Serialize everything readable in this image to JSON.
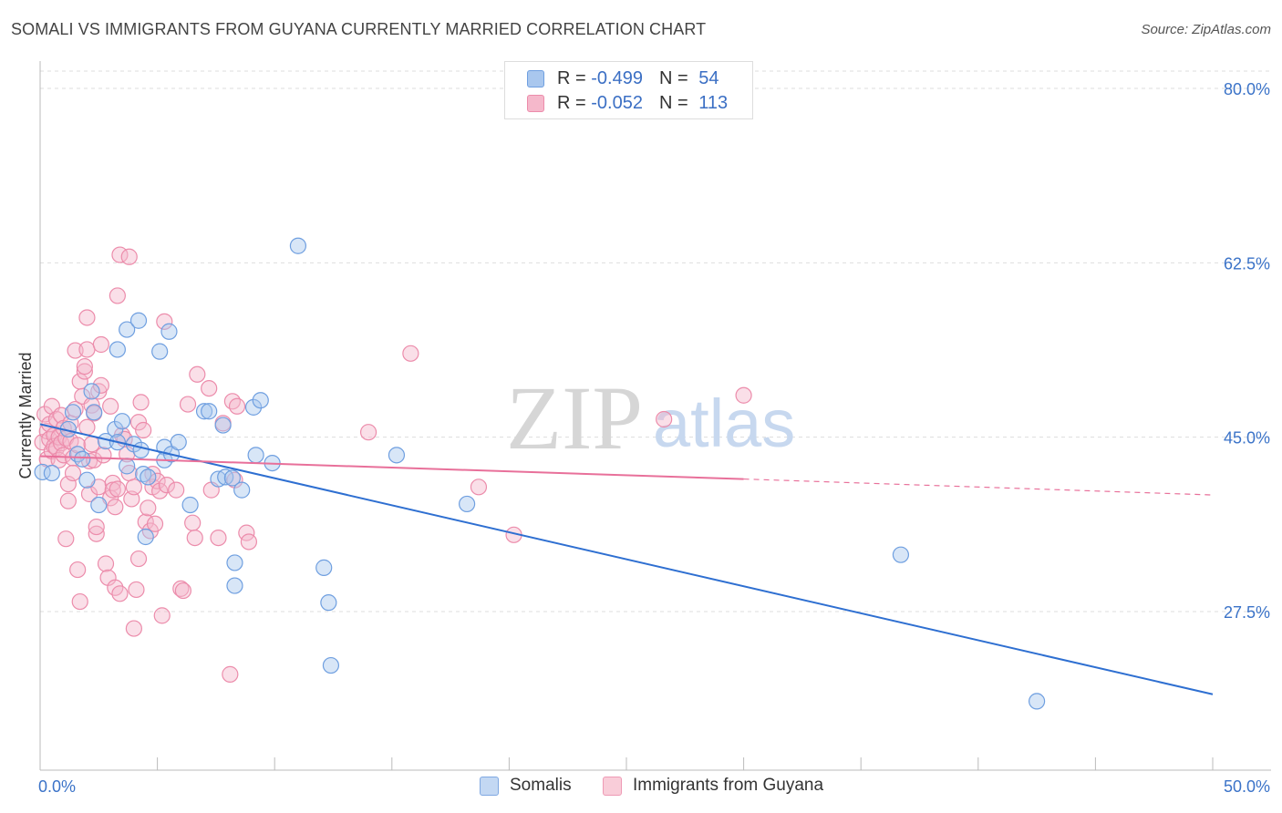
{
  "header": {
    "title": "SOMALI VS IMMIGRANTS FROM GUYANA CURRENTLY MARRIED CORRELATION CHART",
    "source": "Source: ZipAtlas.com"
  },
  "watermark": {
    "part1": "ZIP",
    "part2": "atlas"
  },
  "legend_top": {
    "rows": [
      {
        "r_label": "R = ",
        "r_value": "-0.499",
        "n_label": "N = ",
        "n_value": "54"
      },
      {
        "r_label": "R = ",
        "r_value": "-0.052",
        "n_label": "N = ",
        "n_value": "113"
      }
    ]
  },
  "legend_bottom": {
    "items": [
      "Somalis",
      "Immigrants from Guyana"
    ]
  },
  "colors": {
    "blue_fill": "#a9c7ee",
    "blue_stroke": "#6f9fe0",
    "blue_line": "#2e6fd1",
    "pink_fill": "#f5b8cb",
    "pink_stroke": "#ec8cab",
    "pink_line": "#e8709a",
    "tick_label": "#3b73c8",
    "grid": "#dddddd"
  },
  "chart_data": {
    "type": "scatter",
    "title": "SOMALI VS IMMIGRANTS FROM GUYANA CURRENTLY MARRIED CORRELATION CHART",
    "xlabel": "",
    "ylabel": "Currently Married",
    "xlim": [
      0,
      50
    ],
    "ylim": [
      12,
      83
    ],
    "x_tick_labels": [
      {
        "value": 0,
        "label": "0.0%"
      },
      {
        "value": 50,
        "label": "50.0%"
      }
    ],
    "y_ticks": [
      {
        "value": 80,
        "label": "80.0%"
      },
      {
        "value": 62.5,
        "label": "62.5%"
      },
      {
        "value": 45,
        "label": "45.0%"
      },
      {
        "value": 27.5,
        "label": "27.5%"
      }
    ],
    "grid": true,
    "legend_position": "top-center",
    "series": [
      {
        "name": "Somalis",
        "r": -0.499,
        "n": 54,
        "trend": {
          "x": [
            0,
            50
          ],
          "y": [
            46.3,
            19.2
          ],
          "style": "solid"
        },
        "points": [
          [
            0.1,
            41.5
          ],
          [
            0.5,
            41.4
          ],
          [
            1.2,
            45.8
          ],
          [
            1.4,
            47.5
          ],
          [
            1.6,
            43.3
          ],
          [
            1.8,
            42.8
          ],
          [
            2.0,
            40.7
          ],
          [
            2.2,
            49.6
          ],
          [
            2.3,
            47.5
          ],
          [
            2.5,
            38.2
          ],
          [
            2.8,
            44.6
          ],
          [
            3.2,
            45.8
          ],
          [
            3.3,
            44.5
          ],
          [
            3.5,
            46.6
          ],
          [
            3.3,
            53.8
          ],
          [
            3.7,
            42.1
          ],
          [
            3.7,
            55.8
          ],
          [
            4.0,
            44.3
          ],
          [
            4.2,
            56.7
          ],
          [
            4.3,
            43.7
          ],
          [
            4.4,
            41.3
          ],
          [
            4.5,
            35.0
          ],
          [
            4.6,
            41.0
          ],
          [
            5.1,
            53.6
          ],
          [
            5.3,
            44.0
          ],
          [
            5.3,
            42.7
          ],
          [
            5.5,
            55.6
          ],
          [
            5.6,
            43.3
          ],
          [
            5.9,
            44.5
          ],
          [
            6.4,
            38.2
          ],
          [
            7.0,
            47.6
          ],
          [
            7.2,
            47.6
          ],
          [
            7.6,
            40.8
          ],
          [
            7.8,
            46.2
          ],
          [
            7.9,
            41.0
          ],
          [
            8.2,
            40.9
          ],
          [
            8.3,
            30.1
          ],
          [
            8.3,
            32.4
          ],
          [
            8.6,
            39.7
          ],
          [
            9.1,
            48.0
          ],
          [
            9.2,
            43.2
          ],
          [
            9.4,
            48.7
          ],
          [
            9.9,
            42.4
          ],
          [
            11.0,
            64.2
          ],
          [
            12.1,
            31.9
          ],
          [
            12.3,
            28.4
          ],
          [
            12.4,
            22.1
          ],
          [
            15.2,
            43.2
          ],
          [
            18.2,
            38.3
          ],
          [
            36.7,
            33.2
          ],
          [
            42.5,
            18.5
          ]
        ]
      },
      {
        "name": "Immigrants from Guyana",
        "r": -0.052,
        "n": 113,
        "trend": {
          "x": [
            0,
            30
          ],
          "y": [
            43.1,
            40.8
          ],
          "style": "solid",
          "dashed_extension_to": [
            50,
            39.2
          ]
        },
        "points": [
          [
            0.1,
            44.5
          ],
          [
            0.2,
            47.3
          ],
          [
            0.3,
            45.6
          ],
          [
            0.3,
            42.8
          ],
          [
            0.4,
            46.3
          ],
          [
            0.4,
            44.8
          ],
          [
            0.5,
            48.1
          ],
          [
            0.5,
            43.6
          ],
          [
            0.6,
            45.2
          ],
          [
            0.6,
            44.1
          ],
          [
            0.7,
            46.8
          ],
          [
            0.7,
            43.9
          ],
          [
            0.8,
            45.0
          ],
          [
            0.8,
            42.7
          ],
          [
            0.9,
            47.2
          ],
          [
            0.9,
            44.4
          ],
          [
            1.0,
            45.9
          ],
          [
            1.0,
            43.2
          ],
          [
            1.1,
            44.9
          ],
          [
            1.1,
            34.8
          ],
          [
            1.2,
            40.3
          ],
          [
            1.2,
            38.6
          ],
          [
            1.3,
            46.4
          ],
          [
            1.3,
            44.6
          ],
          [
            1.4,
            42.9
          ],
          [
            1.4,
            41.4
          ],
          [
            1.5,
            53.7
          ],
          [
            1.5,
            47.8
          ],
          [
            1.6,
            44.2
          ],
          [
            1.6,
            31.7
          ],
          [
            1.7,
            28.5
          ],
          [
            1.7,
            50.6
          ],
          [
            1.8,
            49.1
          ],
          [
            1.9,
            51.6
          ],
          [
            1.9,
            52.1
          ],
          [
            2.0,
            53.8
          ],
          [
            2.0,
            57.0
          ],
          [
            2.0,
            46.0
          ],
          [
            2.1,
            42.6
          ],
          [
            2.1,
            39.3
          ],
          [
            2.2,
            44.3
          ],
          [
            2.2,
            48.2
          ],
          [
            2.3,
            47.4
          ],
          [
            2.3,
            42.7
          ],
          [
            2.4,
            35.3
          ],
          [
            2.4,
            36.0
          ],
          [
            2.5,
            49.6
          ],
          [
            2.5,
            40.0
          ],
          [
            2.6,
            54.3
          ],
          [
            2.6,
            50.2
          ],
          [
            2.7,
            43.2
          ],
          [
            2.8,
            32.3
          ],
          [
            2.9,
            30.9
          ],
          [
            3.0,
            48.1
          ],
          [
            3.0,
            38.9
          ],
          [
            3.1,
            40.4
          ],
          [
            3.1,
            39.7
          ],
          [
            3.2,
            38.0
          ],
          [
            3.2,
            29.9
          ],
          [
            3.3,
            59.2
          ],
          [
            3.3,
            39.8
          ],
          [
            3.4,
            63.3
          ],
          [
            3.4,
            29.3
          ],
          [
            3.5,
            45.2
          ],
          [
            3.6,
            44.8
          ],
          [
            3.7,
            43.3
          ],
          [
            3.8,
            63.1
          ],
          [
            3.8,
            41.4
          ],
          [
            3.9,
            38.8
          ],
          [
            4.0,
            25.8
          ],
          [
            4.0,
            40.0
          ],
          [
            4.1,
            29.7
          ],
          [
            4.2,
            32.8
          ],
          [
            4.2,
            46.5
          ],
          [
            4.3,
            48.5
          ],
          [
            4.4,
            45.7
          ],
          [
            4.5,
            36.5
          ],
          [
            4.6,
            37.9
          ],
          [
            4.7,
            35.6
          ],
          [
            4.8,
            41.3
          ],
          [
            4.8,
            40.0
          ],
          [
            4.9,
            36.3
          ],
          [
            5.0,
            40.6
          ],
          [
            5.1,
            39.6
          ],
          [
            5.2,
            27.1
          ],
          [
            5.3,
            56.6
          ],
          [
            5.4,
            40.2
          ],
          [
            5.8,
            39.7
          ],
          [
            6.0,
            29.8
          ],
          [
            6.1,
            29.6
          ],
          [
            6.3,
            48.3
          ],
          [
            6.5,
            36.4
          ],
          [
            6.6,
            34.9
          ],
          [
            6.7,
            51.3
          ],
          [
            7.2,
            49.9
          ],
          [
            7.3,
            39.7
          ],
          [
            7.6,
            34.9
          ],
          [
            7.8,
            46.4
          ],
          [
            8.1,
            21.2
          ],
          [
            8.2,
            48.6
          ],
          [
            8.3,
            40.7
          ],
          [
            8.4,
            48.1
          ],
          [
            8.8,
            35.4
          ],
          [
            8.9,
            34.5
          ],
          [
            14.0,
            45.5
          ],
          [
            15.8,
            53.4
          ],
          [
            18.7,
            40.0
          ],
          [
            20.2,
            35.2
          ],
          [
            26.6,
            46.8
          ],
          [
            30.0,
            49.2
          ]
        ]
      }
    ]
  }
}
